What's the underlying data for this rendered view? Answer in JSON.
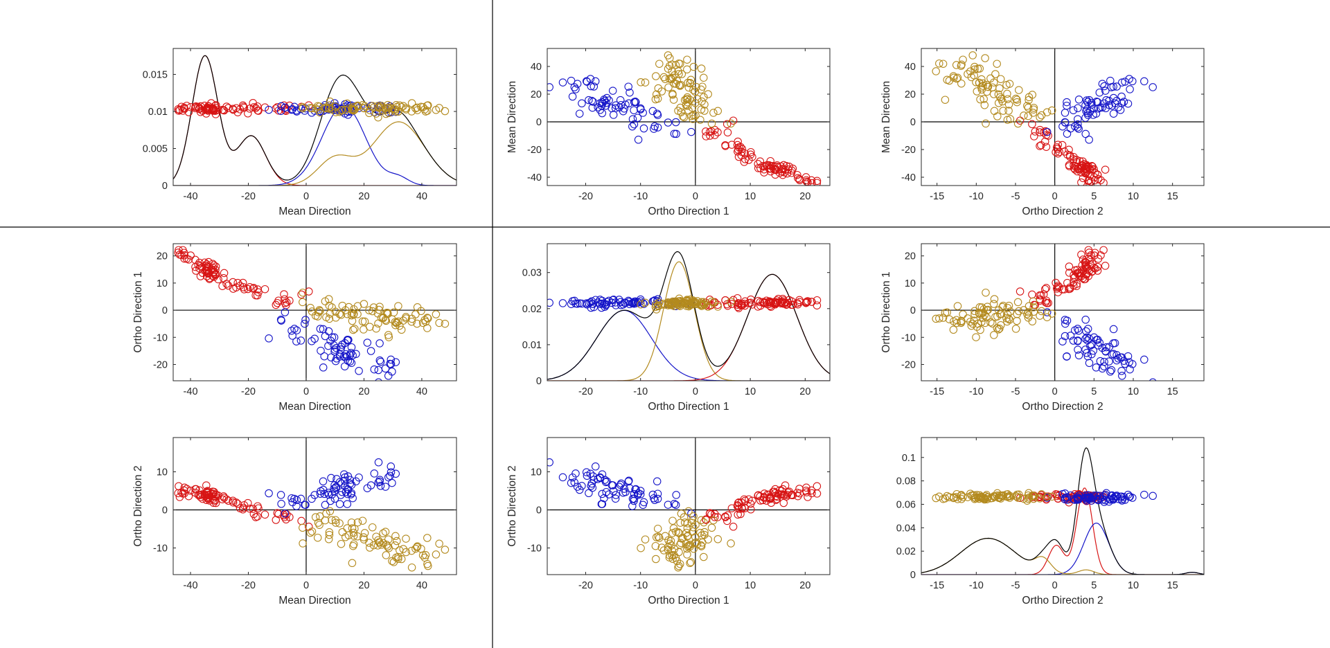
{
  "colors": {
    "red": "#D71414",
    "blue": "#1414C8",
    "gold": "#B38A1E",
    "black": "#000000"
  },
  "chart_data": [
    {
      "id": "p11",
      "type": "line",
      "x_var": "mean",
      "y_var": "density",
      "xlabel": "Mean Direction",
      "ylabel": "",
      "xlim": [
        -46,
        52
      ],
      "ylim": [
        0,
        0.0185
      ],
      "xticks": [
        "-40",
        "-20",
        "0",
        "20",
        "40"
      ],
      "xtick_values": [
        -40,
        -20,
        0,
        20,
        40
      ],
      "yticks": [
        "0",
        "0.005",
        "0.01",
        "0.015"
      ],
      "ytick_values": [
        0,
        0.005,
        0.01,
        0.015
      ],
      "zero_lines": false,
      "curves": [
        {
          "color": "red",
          "components": [
            [
              -35,
              4.5,
              0.0175
            ],
            [
              -19,
              5,
              0.0067
            ]
          ]
        },
        {
          "color": "blue",
          "components": [
            [
              13,
              7.5,
              0.0108
            ],
            [
              32,
              3.5,
              0.001
            ]
          ]
        },
        {
          "color": "gold",
          "components": [
            [
              32,
              9,
              0.0086
            ],
            [
              10,
              6,
              0.0036
            ]
          ]
        },
        {
          "color": "black",
          "components": [
            [
              -35,
              4.5,
              0.0175
            ],
            [
              -19,
              5,
              0.0067
            ],
            [
              13,
              7.5,
              0.0108
            ],
            [
              32,
              3.5,
              0.001
            ],
            [
              32,
              9,
              0.0086
            ],
            [
              10,
              6,
              0.0036
            ]
          ]
        }
      ],
      "strip": {
        "level": 0.0104,
        "jitter": 0.0006
      }
    },
    {
      "id": "p12",
      "type": "scatter",
      "x_var": "o1",
      "y_var": "mean",
      "xlabel": "Ortho Direction 1",
      "ylabel": "Mean Direction",
      "xlim": [
        -27,
        24.5
      ],
      "ylim": [
        -46,
        53
      ],
      "xticks": [
        "-20",
        "-10",
        "0",
        "10",
        "20"
      ],
      "xtick_values": [
        -20,
        -10,
        0,
        10,
        20
      ],
      "yticks": [
        "-40",
        "-20",
        "0",
        "20",
        "40"
      ],
      "ytick_values": [
        -40,
        -20,
        0,
        20,
        40
      ],
      "zero_lines": true
    },
    {
      "id": "p13",
      "type": "scatter",
      "x_var": "o2",
      "y_var": "mean",
      "xlabel": "Ortho Direction 2",
      "ylabel": "Mean Direction",
      "xlim": [
        -17,
        19
      ],
      "ylim": [
        -46,
        53
      ],
      "xticks": [
        "-15",
        "-10",
        "-5",
        "0",
        "5",
        "10",
        "15"
      ],
      "xtick_values": [
        -15,
        -10,
        -5,
        0,
        5,
        10,
        15
      ],
      "yticks": [
        "-40",
        "-20",
        "0",
        "20",
        "40"
      ],
      "ytick_values": [
        -40,
        -20,
        0,
        20,
        40
      ],
      "zero_lines": true
    },
    {
      "id": "p21",
      "type": "scatter",
      "x_var": "mean",
      "y_var": "o1",
      "xlabel": "Mean Direction",
      "ylabel": "Ortho Direction 1",
      "xlim": [
        -46,
        52
      ],
      "ylim": [
        -26,
        24.5
      ],
      "xticks": [
        "-40",
        "-20",
        "0",
        "20",
        "40"
      ],
      "xtick_values": [
        -40,
        -20,
        0,
        20,
        40
      ],
      "yticks": [
        "-20",
        "-10",
        "0",
        "10",
        "20"
      ],
      "ytick_values": [
        -20,
        -10,
        0,
        10,
        20
      ],
      "zero_lines": true
    },
    {
      "id": "p22",
      "type": "line",
      "x_var": "o1",
      "y_var": "density",
      "xlabel": "Ortho Direction 1",
      "ylabel": "",
      "xlim": [
        -27,
        24.5
      ],
      "ylim": [
        0,
        0.038
      ],
      "xticks": [
        "-20",
        "-10",
        "0",
        "10",
        "20"
      ],
      "xtick_values": [
        -20,
        -10,
        0,
        10,
        20
      ],
      "yticks": [
        "0",
        "0.01",
        "0.02",
        "0.03"
      ],
      "ytick_values": [
        0,
        0.01,
        0.02,
        0.03
      ],
      "zero_lines": false,
      "curves": [
        {
          "color": "blue",
          "components": [
            [
              -13,
              5,
              0.0195
            ]
          ]
        },
        {
          "color": "gold",
          "components": [
            [
              -3,
              2.8,
              0.033
            ]
          ]
        },
        {
          "color": "red",
          "components": [
            [
              14,
              4.5,
              0.0295
            ]
          ]
        },
        {
          "color": "black",
          "components": [
            [
              -13,
              5,
              0.0195
            ],
            [
              -3,
              2.8,
              0.033
            ],
            [
              14,
              4.5,
              0.0295
            ]
          ]
        }
      ],
      "strip": {
        "level": 0.0215,
        "jitter": 0.0012
      }
    },
    {
      "id": "p23",
      "type": "scatter",
      "x_var": "o2",
      "y_var": "o1",
      "xlabel": "Ortho Direction 2",
      "ylabel": "Ortho Direction 1",
      "xlim": [
        -17,
        19
      ],
      "ylim": [
        -26,
        24.5
      ],
      "xticks": [
        "-15",
        "-10",
        "-5",
        "0",
        "5",
        "10",
        "15"
      ],
      "xtick_values": [
        -15,
        -10,
        -5,
        0,
        5,
        10,
        15
      ],
      "yticks": [
        "-20",
        "-10",
        "0",
        "10",
        "20"
      ],
      "ytick_values": [
        -20,
        -10,
        0,
        10,
        20
      ],
      "zero_lines": true
    },
    {
      "id": "p31",
      "type": "scatter",
      "x_var": "mean",
      "y_var": "o2",
      "xlabel": "Mean Direction",
      "ylabel": "Ortho Direction 2",
      "xlim": [
        -46,
        52
      ],
      "ylim": [
        -17,
        19
      ],
      "xticks": [
        "-40",
        "-20",
        "0",
        "20",
        "40"
      ],
      "xtick_values": [
        -40,
        -20,
        0,
        20,
        40
      ],
      "yticks": [
        "-10",
        "0",
        "10"
      ],
      "ytick_values": [
        -10,
        0,
        10
      ],
      "zero_lines": true
    },
    {
      "id": "p32",
      "type": "scatter",
      "x_var": "o1",
      "y_var": "o2",
      "xlabel": "Ortho Direction 1",
      "ylabel": "Ortho Direction 2",
      "xlim": [
        -27,
        24.5
      ],
      "ylim": [
        -17,
        19
      ],
      "xticks": [
        "-20",
        "-10",
        "0",
        "10",
        "20"
      ],
      "xtick_values": [
        -20,
        -10,
        0,
        10,
        20
      ],
      "yticks": [
        "-10",
        "0",
        "10"
      ],
      "ytick_values": [
        -10,
        0,
        10
      ],
      "zero_lines": true
    },
    {
      "id": "p33",
      "type": "line",
      "x_var": "o2",
      "y_var": "density",
      "xlabel": "Ortho Direction 2",
      "ylabel": "",
      "xlim": [
        -17,
        19
      ],
      "ylim": [
        0,
        0.117
      ],
      "xticks": [
        "-15",
        "-10",
        "-5",
        "0",
        "5",
        "10",
        "15"
      ],
      "xtick_values": [
        -15,
        -10,
        -5,
        0,
        5,
        10,
        15
      ],
      "yticks": [
        "0",
        "0.02",
        "0.04",
        "0.06",
        "0.08",
        "0.1"
      ],
      "ytick_values": [
        0,
        0.02,
        0.04,
        0.06,
        0.08,
        0.1
      ],
      "zero_lines": false,
      "curves": [
        {
          "color": "red",
          "components": [
            [
              3.8,
              1.0,
              0.074
            ],
            [
              0.2,
              1.0,
              0.025
            ]
          ]
        },
        {
          "color": "blue",
          "components": [
            [
              5.3,
              1.6,
              0.044
            ],
            [
              17.5,
              0.8,
              0.002
            ]
          ]
        },
        {
          "color": "gold",
          "components": [
            [
              -8.5,
              3.5,
              0.031
            ],
            [
              -1.5,
              1.0,
              0.011
            ],
            [
              4,
              1.0,
              0.004
            ]
          ]
        },
        {
          "color": "black",
          "components": [
            [
              3.8,
              1.0,
              0.074
            ],
            [
              0.2,
              1.0,
              0.025
            ],
            [
              5.3,
              1.6,
              0.044
            ],
            [
              17.5,
              0.8,
              0.002
            ],
            [
              -8.5,
              3.5,
              0.031
            ],
            [
              -1.5,
              1.0,
              0.011
            ],
            [
              4,
              1.0,
              0.004
            ]
          ]
        }
      ],
      "strip": {
        "level": 0.066,
        "jitter": 0.003
      }
    }
  ],
  "clusters": [
    {
      "name": "red",
      "n": 85,
      "mean": {
        "anchors": [
          [
            0,
            -44
          ],
          [
            0.12,
            -38
          ],
          [
            0.25,
            -35
          ],
          [
            0.38,
            -34
          ],
          [
            0.5,
            -32
          ],
          [
            0.62,
            -28
          ],
          [
            0.74,
            -20
          ],
          [
            0.86,
            -12
          ],
          [
            0.94,
            -6
          ],
          [
            1,
            0
          ]
        ],
        "noise": 1.8
      },
      "o1": {
        "anchors": [
          [
            0,
            21
          ],
          [
            0.12,
            18
          ],
          [
            0.25,
            15.5
          ],
          [
            0.38,
            14
          ],
          [
            0.5,
            12.5
          ],
          [
            0.62,
            10.5
          ],
          [
            0.74,
            8
          ],
          [
            0.86,
            4.5
          ],
          [
            0.94,
            3
          ],
          [
            1,
            5
          ]
        ],
        "noise": 1.3
      },
      "o2": {
        "anchors": [
          [
            0,
            5
          ],
          [
            0.12,
            4.5
          ],
          [
            0.25,
            4
          ],
          [
            0.38,
            4
          ],
          [
            0.5,
            3.5
          ],
          [
            0.62,
            3
          ],
          [
            0.74,
            1
          ],
          [
            0.86,
            -1
          ],
          [
            0.94,
            -2
          ],
          [
            1,
            -3
          ]
        ],
        "noise": 0.9
      }
    },
    {
      "name": "blue",
      "n": 70,
      "mean": {
        "anchors": [
          [
            0,
            -10
          ],
          [
            0.2,
            5
          ],
          [
            0.5,
            12
          ],
          [
            0.8,
            16
          ],
          [
            1,
            33
          ]
        ],
        "noise": 2.5
      },
      "o1": {
        "anchors": [
          [
            0,
            -4
          ],
          [
            0.2,
            -10
          ],
          [
            0.5,
            -14
          ],
          [
            0.8,
            -17
          ],
          [
            1,
            -23
          ]
        ],
        "noise": 2.6
      },
      "o2": {
        "anchors": [
          [
            0,
            2
          ],
          [
            0.3,
            4
          ],
          [
            0.6,
            5.5
          ],
          [
            1,
            9
          ]
        ],
        "noise": 1.8
      }
    },
    {
      "name": "gold",
      "n": 85,
      "mean": {
        "anchors": [
          [
            0,
            0
          ],
          [
            0.3,
            15
          ],
          [
            0.55,
            25
          ],
          [
            0.8,
            33
          ],
          [
            1,
            47
          ]
        ],
        "noise": 3.5
      },
      "o1": {
        "anchors": [
          [
            0,
            1
          ],
          [
            0.3,
            -2
          ],
          [
            0.6,
            -4
          ],
          [
            0.85,
            -5
          ],
          [
            1,
            -2
          ]
        ],
        "noise": 2.5
      },
      "o2": {
        "anchors": [
          [
            0,
            -3
          ],
          [
            0.3,
            -6
          ],
          [
            0.6,
            -9
          ],
          [
            0.85,
            -11
          ],
          [
            1,
            -10
          ]
        ],
        "noise": 2.2
      }
    }
  ]
}
